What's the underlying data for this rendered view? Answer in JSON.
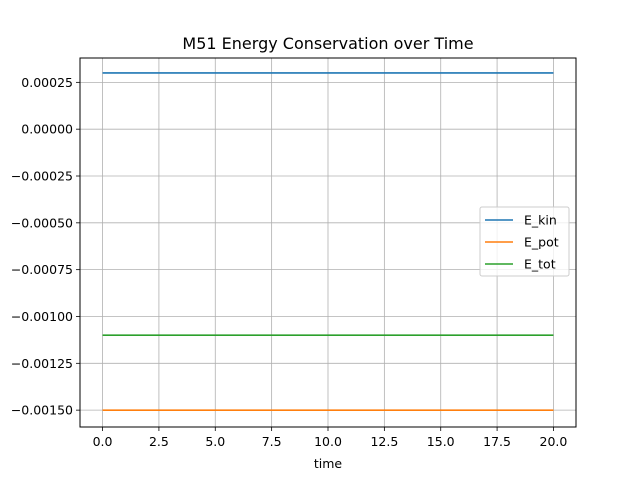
{
  "chart_data": {
    "type": "line",
    "title": "M51 Energy Conservation over Time",
    "xlabel": "time",
    "ylabel": "",
    "xlim": [
      -1.0,
      21.0
    ],
    "ylim": [
      -0.00159,
      0.00038
    ],
    "xticks": [
      0.0,
      2.5,
      5.0,
      7.5,
      10.0,
      12.5,
      15.0,
      17.5,
      20.0
    ],
    "xtick_labels": [
      "0.0",
      "2.5",
      "5.0",
      "7.5",
      "10.0",
      "12.5",
      "15.0",
      "17.5",
      "20.0"
    ],
    "yticks": [
      0.00025,
      0.0,
      -0.00025,
      -0.0005,
      -0.00075,
      -0.001,
      -0.00125,
      -0.0015
    ],
    "ytick_labels": [
      "0.00025",
      "0.00000",
      "−0.00025",
      "−0.00050",
      "−0.00075",
      "−0.00100",
      "−0.00125",
      "−0.00150"
    ],
    "grid": true,
    "legend_position": "center-right",
    "series": [
      {
        "name": "E_kin",
        "color": "#1f77b4",
        "x": [
          0.0,
          20.0
        ],
        "y": [
          0.0003,
          0.0003
        ]
      },
      {
        "name": "E_pot",
        "color": "#ff7f0e",
        "x": [
          0.0,
          20.0
        ],
        "y": [
          -0.0015,
          -0.0015
        ]
      },
      {
        "name": "E_tot",
        "color": "#2ca02c",
        "x": [
          0.0,
          20.0
        ],
        "y": [
          -0.0011,
          -0.0011
        ]
      }
    ]
  }
}
